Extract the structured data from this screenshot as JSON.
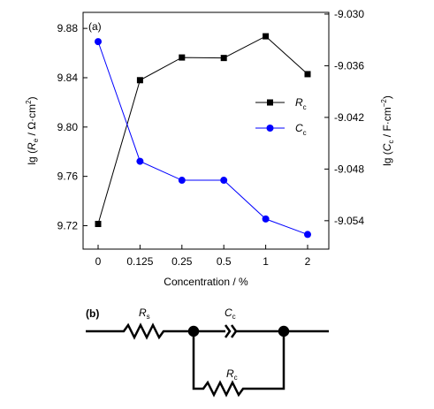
{
  "chart_data": {
    "type": "line",
    "annotation": "(a)",
    "xlabel": "Concentration / %",
    "ylabel": [
      "lg (",
      "R",
      "e",
      " / Ω·cm",
      "2",
      ")"
    ],
    "y2label": [
      "lg (",
      "C",
      "c",
      " / F·cm",
      "−2",
      ")"
    ],
    "categories": [
      "0",
      "0.125",
      "0.25",
      "0.5",
      "1",
      "2"
    ],
    "ylim": [
      9.701,
      9.893
    ],
    "yticks": [
      9.72,
      9.76,
      {
        "value": 9.8,
        "label": "9.80"
      },
      9.84,
      9.88
    ],
    "y2lim": [
      -9.0573,
      -9.0298
    ],
    "y2ticks": [
      -9.054,
      -9.048,
      -9.042,
      -9.036,
      {
        "value": -9.03,
        "label": "-9.030"
      }
    ],
    "series": [
      {
        "name": [
          "R",
          "c"
        ],
        "color": "#000000",
        "marker": "square",
        "values": [
          9.7214,
          9.838,
          9.8564,
          9.856,
          9.8736,
          9.8429
        ]
      },
      {
        "name": [
          "C",
          "c"
        ],
        "color": "#0000ff",
        "marker": "circle",
        "axis": "y2",
        "values": [
          -9.0332,
          -9.0471,
          -9.0493,
          -9.0493,
          -9.0538,
          -9.0556
        ]
      }
    ]
  },
  "circuit": {
    "label": "(b)",
    "components": [
      [
        "R",
        "s"
      ],
      [
        "C",
        "c"
      ],
      [
        "R",
        "c"
      ]
    ]
  }
}
